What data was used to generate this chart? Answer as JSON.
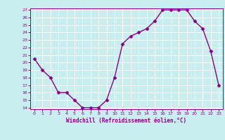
{
  "x": [
    0,
    1,
    2,
    3,
    4,
    5,
    6,
    7,
    8,
    9,
    10,
    11,
    12,
    13,
    14,
    15,
    16,
    17,
    18,
    19,
    20,
    21,
    22,
    23
  ],
  "y": [
    20.5,
    19.0,
    18.0,
    16.0,
    16.0,
    15.0,
    14.0,
    14.0,
    14.0,
    15.0,
    18.0,
    22.5,
    23.5,
    24.0,
    24.5,
    25.5,
    27.0,
    27.0,
    27.0,
    27.0,
    25.5,
    24.5,
    21.5,
    17.0
  ],
  "ylim": [
    14,
    27
  ],
  "xlim": [
    -0.5,
    23.5
  ],
  "yticks": [
    14,
    15,
    16,
    17,
    18,
    19,
    20,
    21,
    22,
    23,
    24,
    25,
    26,
    27
  ],
  "xticks": [
    0,
    1,
    2,
    3,
    4,
    5,
    6,
    7,
    8,
    9,
    10,
    11,
    12,
    13,
    14,
    15,
    16,
    17,
    18,
    19,
    20,
    21,
    22,
    23
  ],
  "line_color": "#880088",
  "marker": "D",
  "marker_size": 2.5,
  "bg_color": "#c8eef0",
  "grid_color": "#ffffff",
  "xlabel": "Windchill (Refroidissement éolien,°C)",
  "xlabel_color": "#880088",
  "tick_color": "#880088",
  "axis_color": "#880088"
}
